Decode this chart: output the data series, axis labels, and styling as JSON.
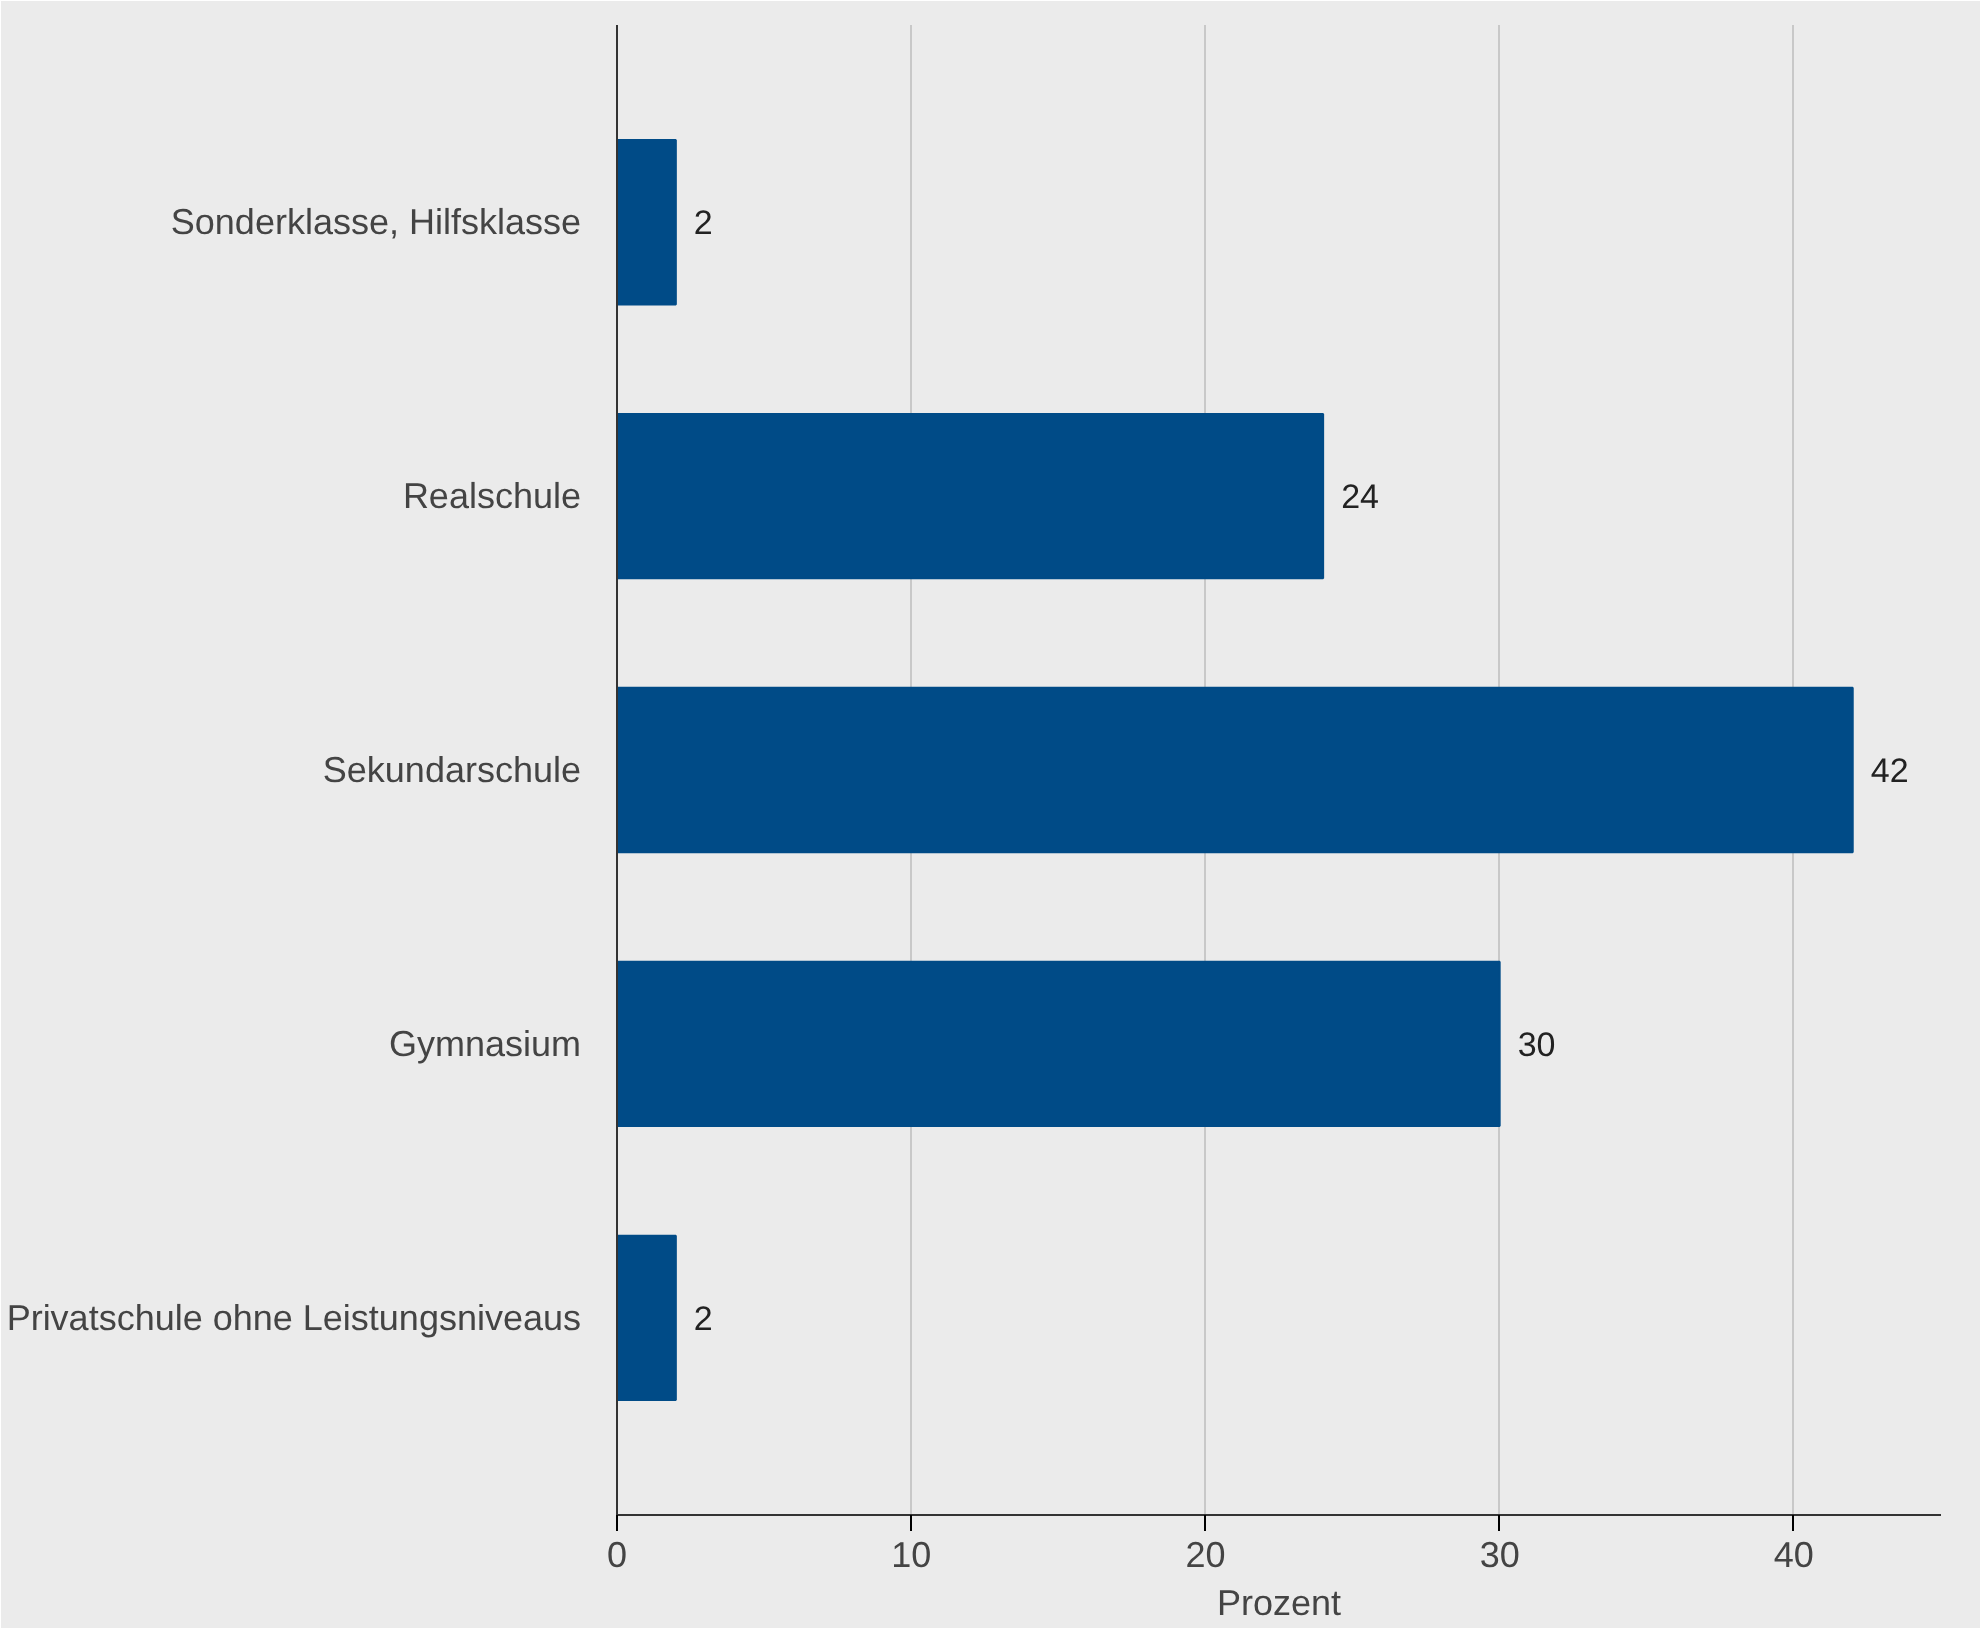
{
  "chart_data": {
    "type": "bar",
    "orientation": "horizontal",
    "xlabel": "Prozent",
    "categories": [
      "Sonderklasse, Hilfsklasse",
      "Realschule",
      "Sekundarschule",
      "Gymnasium",
      "Privatschule ohne Leistungsniveaus"
    ],
    "values": [
      2,
      24,
      42,
      30,
      2
    ],
    "color": "#004b87",
    "xlim": [
      0,
      45
    ],
    "xticks": [
      0,
      10,
      20,
      30,
      40
    ],
    "grid": "x",
    "data_labels": true
  }
}
